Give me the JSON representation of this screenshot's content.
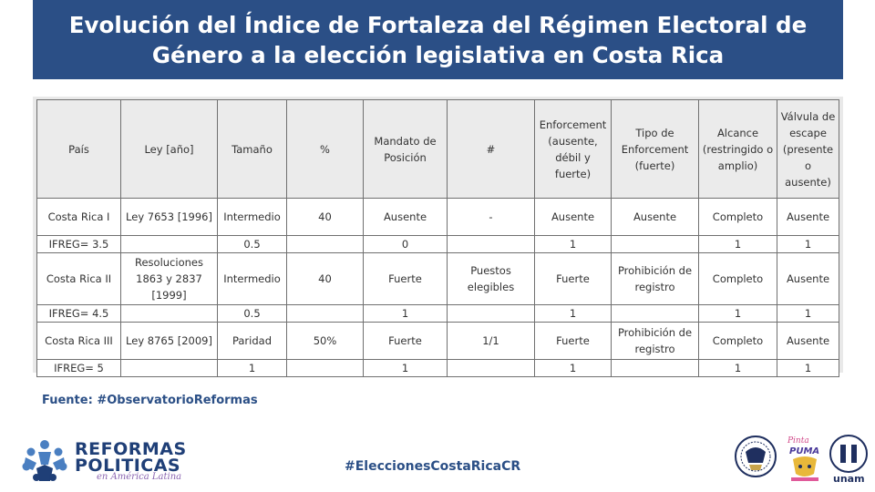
{
  "slide": {
    "title_line1": "Evolución del Índice de Fortaleza del Régimen Electoral de",
    "title_line2": "Género a la elección legislativa en Costa Rica",
    "source": "Fuente: #ObservatorioReformas",
    "hashtag": "#EleccionesCostaRicaCR"
  },
  "table": {
    "headers": {
      "pais": "País",
      "ley": "Ley [año]",
      "tamano": "Tamaño",
      "pct": "%",
      "mandato": "Mandato de Posición",
      "num": "#",
      "enforcement": "Enforcement (ausente, débil y fuerte)",
      "tipo": "Tipo de Enforcement (fuerte)",
      "alcance": "Alcance (restringido o amplio)",
      "valvula": "Válvula de escape (presente o ausente)"
    },
    "rows": [
      {
        "data": {
          "pais": "Costa Rica I",
          "ley": "Ley 7653 [1996]",
          "tamano": "Intermedio",
          "pct": "40",
          "mandato": "Ausente",
          "num": "-",
          "enforcement": "Ausente",
          "tipo": "Ausente",
          "alcance": "Completo",
          "valvula": "Ausente"
        },
        "score": {
          "label": "IFREG= 3.5",
          "ley": "",
          "tamano": "0.5",
          "pct": "",
          "mandato": "0",
          "num": "",
          "enforcement": "1",
          "tipo": "",
          "alcance": "1",
          "valvula": "1"
        }
      },
      {
        "data": {
          "pais": "Costa Rica II",
          "ley": "Resoluciones 1863 y 2837 [1999]",
          "tamano": "Intermedio",
          "pct": "40",
          "mandato": "Fuerte",
          "num": "Puestos elegibles",
          "enforcement": "Fuerte",
          "tipo": "Prohibición de registro",
          "alcance": "Completo",
          "valvula": "Ausente"
        },
        "score": {
          "label": "IFREG= 4.5",
          "ley": "",
          "tamano": "0.5",
          "pct": "",
          "mandato": "1",
          "num": "",
          "enforcement": "1",
          "tipo": "",
          "alcance": "1",
          "valvula": "1"
        }
      },
      {
        "data": {
          "pais": "Costa Rica III",
          "ley": "Ley 8765 [2009]",
          "tamano": "Paridad",
          "pct": "50%",
          "mandato": "Fuerte",
          "num": "1/1",
          "enforcement": "Fuerte",
          "tipo": "Prohibición de registro",
          "alcance": "Completo",
          "valvula": "Ausente"
        },
        "score": {
          "label": "IFREG= 5",
          "ley": "",
          "tamano": "1",
          "pct": "",
          "mandato": "1",
          "num": "",
          "enforcement": "1",
          "tipo": "",
          "alcance": "1",
          "valvula": "1"
        }
      }
    ]
  },
  "logos": {
    "reformas_line1": "REFORMAS",
    "reformas_line2": "POLITICAS",
    "reformas_line3": "en América Latina",
    "puma_text": "Pinta PUMA",
    "unam_text": "unam"
  },
  "colors": {
    "banner": "#2b4f86",
    "accent_text": "#2b4f86",
    "table_border": "#707070",
    "header_bg": "#ebebeb"
  }
}
